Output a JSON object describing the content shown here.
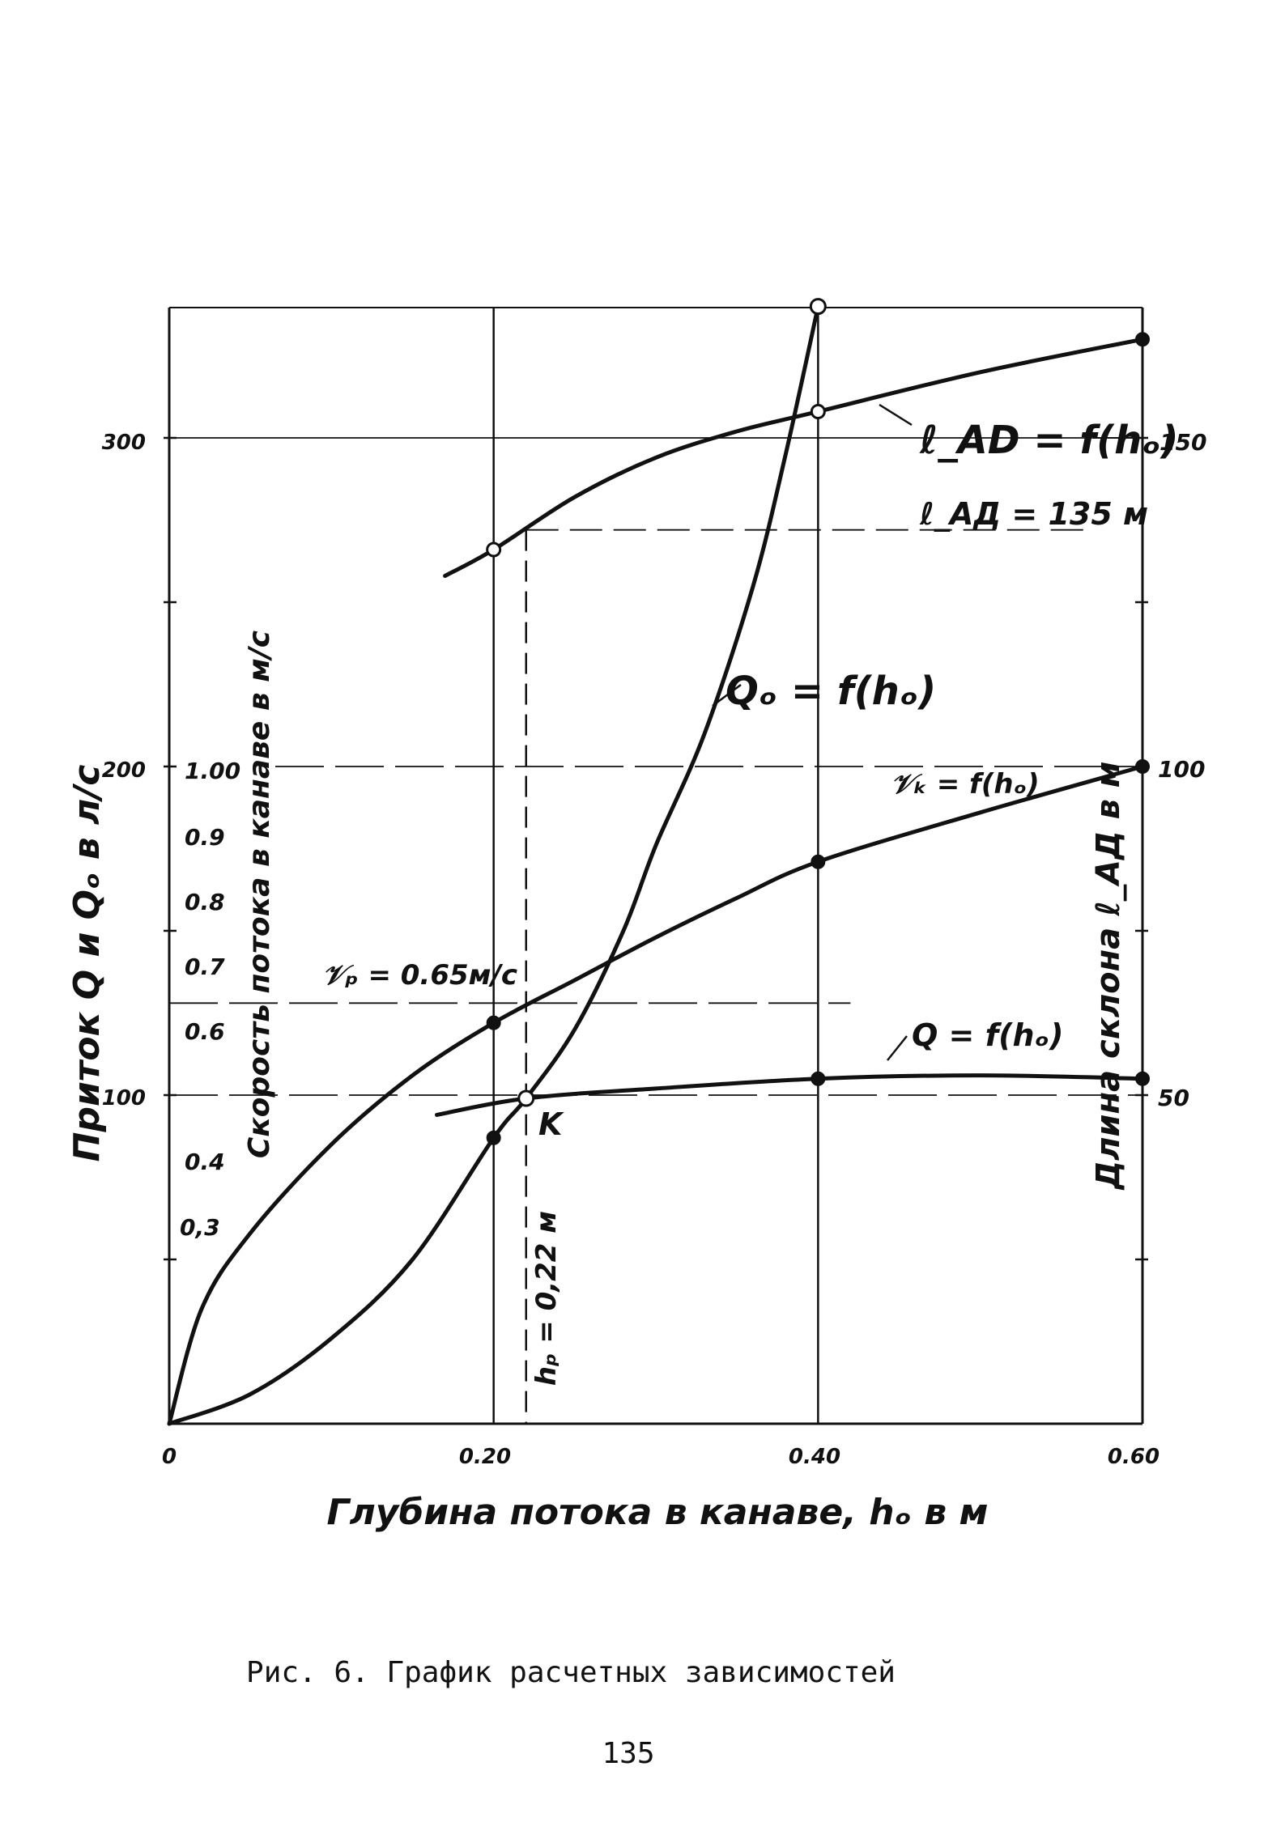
{
  "chart_data": {
    "type": "line",
    "title": "",
    "xlabel": "Глубина потока в канаве, hₒ в м",
    "x_ticks": [
      "0",
      "0.20",
      "0.40",
      "0.60"
    ],
    "xlim": [
      0,
      0.6
    ],
    "axes": {
      "left_Q": {
        "label": "Приток Q и Qₒ в л/с",
        "ticks": [
          "100",
          "200",
          "300"
        ],
        "ylim": [
          0,
          340
        ]
      },
      "left_v": {
        "label": "Скорость потока в канаве в м/с",
        "ticks": [
          "1.00",
          "0.9",
          "0.8",
          "0.7",
          "0.6",
          "0.4",
          "0,3"
        ]
      },
      "right_l": {
        "label": "Длина склона ℓ_АД в м",
        "ticks": [
          "50",
          "100",
          "150"
        ],
        "ylim": [
          0,
          170
        ]
      }
    },
    "series": [
      {
        "name": "Qₒ = f(hₒ)",
        "axis": "left_Q",
        "points": [
          [
            0,
            0
          ],
          [
            0.05,
            9
          ],
          [
            0.1,
            26
          ],
          [
            0.15,
            50
          ],
          [
            0.2,
            87
          ],
          [
            0.22,
            99
          ],
          [
            0.25,
            120
          ],
          [
            0.28,
            150
          ],
          [
            0.3,
            176
          ],
          [
            0.33,
            210
          ],
          [
            0.36,
            255
          ],
          [
            0.38,
            295
          ],
          [
            0.4,
            340
          ]
        ],
        "markers": [
          [
            0.2,
            87
          ],
          [
            0.22,
            99
          ],
          [
            0.4,
            340
          ]
        ]
      },
      {
        "name": "Q = f(hₒ)",
        "axis": "left_Q",
        "points": [
          [
            0.165,
            94
          ],
          [
            0.22,
            99
          ],
          [
            0.3,
            102
          ],
          [
            0.4,
            105
          ],
          [
            0.5,
            106
          ],
          [
            0.6,
            105
          ]
        ],
        "markers": [
          [
            0.4,
            105
          ],
          [
            0.6,
            105
          ]
        ]
      },
      {
        "name": "𝒱ₖ = f(hₒ)",
        "axis": "left_Q",
        "points": [
          [
            0,
            0
          ],
          [
            0.02,
            35
          ],
          [
            0.05,
            58
          ],
          [
            0.1,
            85
          ],
          [
            0.15,
            106
          ],
          [
            0.2,
            122
          ],
          [
            0.25,
            135
          ],
          [
            0.3,
            148
          ],
          [
            0.35,
            160
          ],
          [
            0.4,
            171
          ],
          [
            0.5,
            186
          ],
          [
            0.6,
            200
          ]
        ],
        "markers": [
          [
            0.2,
            122
          ],
          [
            0.4,
            171
          ],
          [
            0.6,
            200
          ]
        ]
      },
      {
        "name": "ℓ_АД = f(hₒ)",
        "axis": "right_l",
        "points": [
          [
            0.17,
            129
          ],
          [
            0.2,
            133
          ],
          [
            0.25,
            141
          ],
          [
            0.3,
            147
          ],
          [
            0.35,
            151
          ],
          [
            0.4,
            154
          ],
          [
            0.5,
            160
          ],
          [
            0.6,
            165
          ]
        ],
        "markers": [
          [
            0.2,
            133
          ],
          [
            0.4,
            154
          ],
          [
            0.6,
            165
          ]
        ]
      }
    ],
    "reference_lines": {
      "h_p": 0.22,
      "v_p_level": 128,
      "l_AD_level": 136,
      "v_100_level": 200,
      "Q_100_level": 100,
      "Q_300_level": 300
    },
    "annotations": {
      "l_ad_curve": "ℓ_АD = f(hₒ)",
      "l_ad_value": "ℓ_АД = 135 м",
      "q0_curve": "Qₒ = f(hₒ)",
      "vk_curve": "𝒱ₖ = f(hₒ)",
      "q_curve": "Q = f(hₒ)",
      "vp_value": "𝒱ₚ = 0.65м/с",
      "point_k": "K",
      "hp_value": "hₚ = 0,22 м"
    }
  },
  "caption": "Рис. 6. График расчетных зависимостей",
  "page_number": "135"
}
